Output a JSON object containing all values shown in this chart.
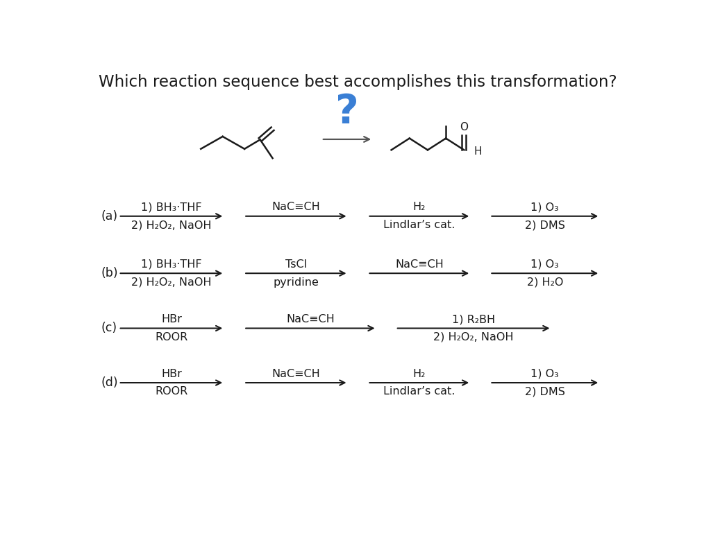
{
  "title": "Which reaction sequence best accomplishes this transformation?",
  "title_fontsize": 16.5,
  "bg_color": "#ffffff",
  "text_color": "#1a1a1a",
  "question_mark_color": "#3a7fd5",
  "rows": [
    {
      "label": "(a)",
      "steps": [
        {
          "top": "1) BH₃·THF",
          "bottom": "2) H₂O₂, NaOH"
        },
        {
          "top": "NaC≡CH",
          "bottom": ""
        },
        {
          "top": "H₂",
          "bottom": "Lindlar’s cat."
        },
        {
          "top": "1) O₃",
          "bottom": "2) DMS"
        }
      ]
    },
    {
      "label": "(b)",
      "steps": [
        {
          "top": "1) BH₃·THF",
          "bottom": "2) H₂O₂, NaOH"
        },
        {
          "top": "TsCl",
          "bottom": "pyridine"
        },
        {
          "top": "NaC≡CH",
          "bottom": ""
        },
        {
          "top": "1) O₃",
          "bottom": "2) H₂O"
        }
      ]
    },
    {
      "label": "(c)",
      "steps": [
        {
          "top": "HBr",
          "bottom": "ROOR"
        },
        {
          "top": "NaC≡CH",
          "bottom": ""
        },
        {
          "top": "1) R₂BH",
          "bottom": "2) H₂O₂, NaOH"
        }
      ]
    },
    {
      "label": "(d)",
      "steps": [
        {
          "top": "HBr",
          "bottom": "ROOR"
        },
        {
          "top": "NaC≡CH",
          "bottom": ""
        },
        {
          "top": "H₂",
          "bottom": "Lindlar’s cat."
        },
        {
          "top": "1) O₃",
          "bottom": "2) DMS"
        }
      ]
    }
  ]
}
